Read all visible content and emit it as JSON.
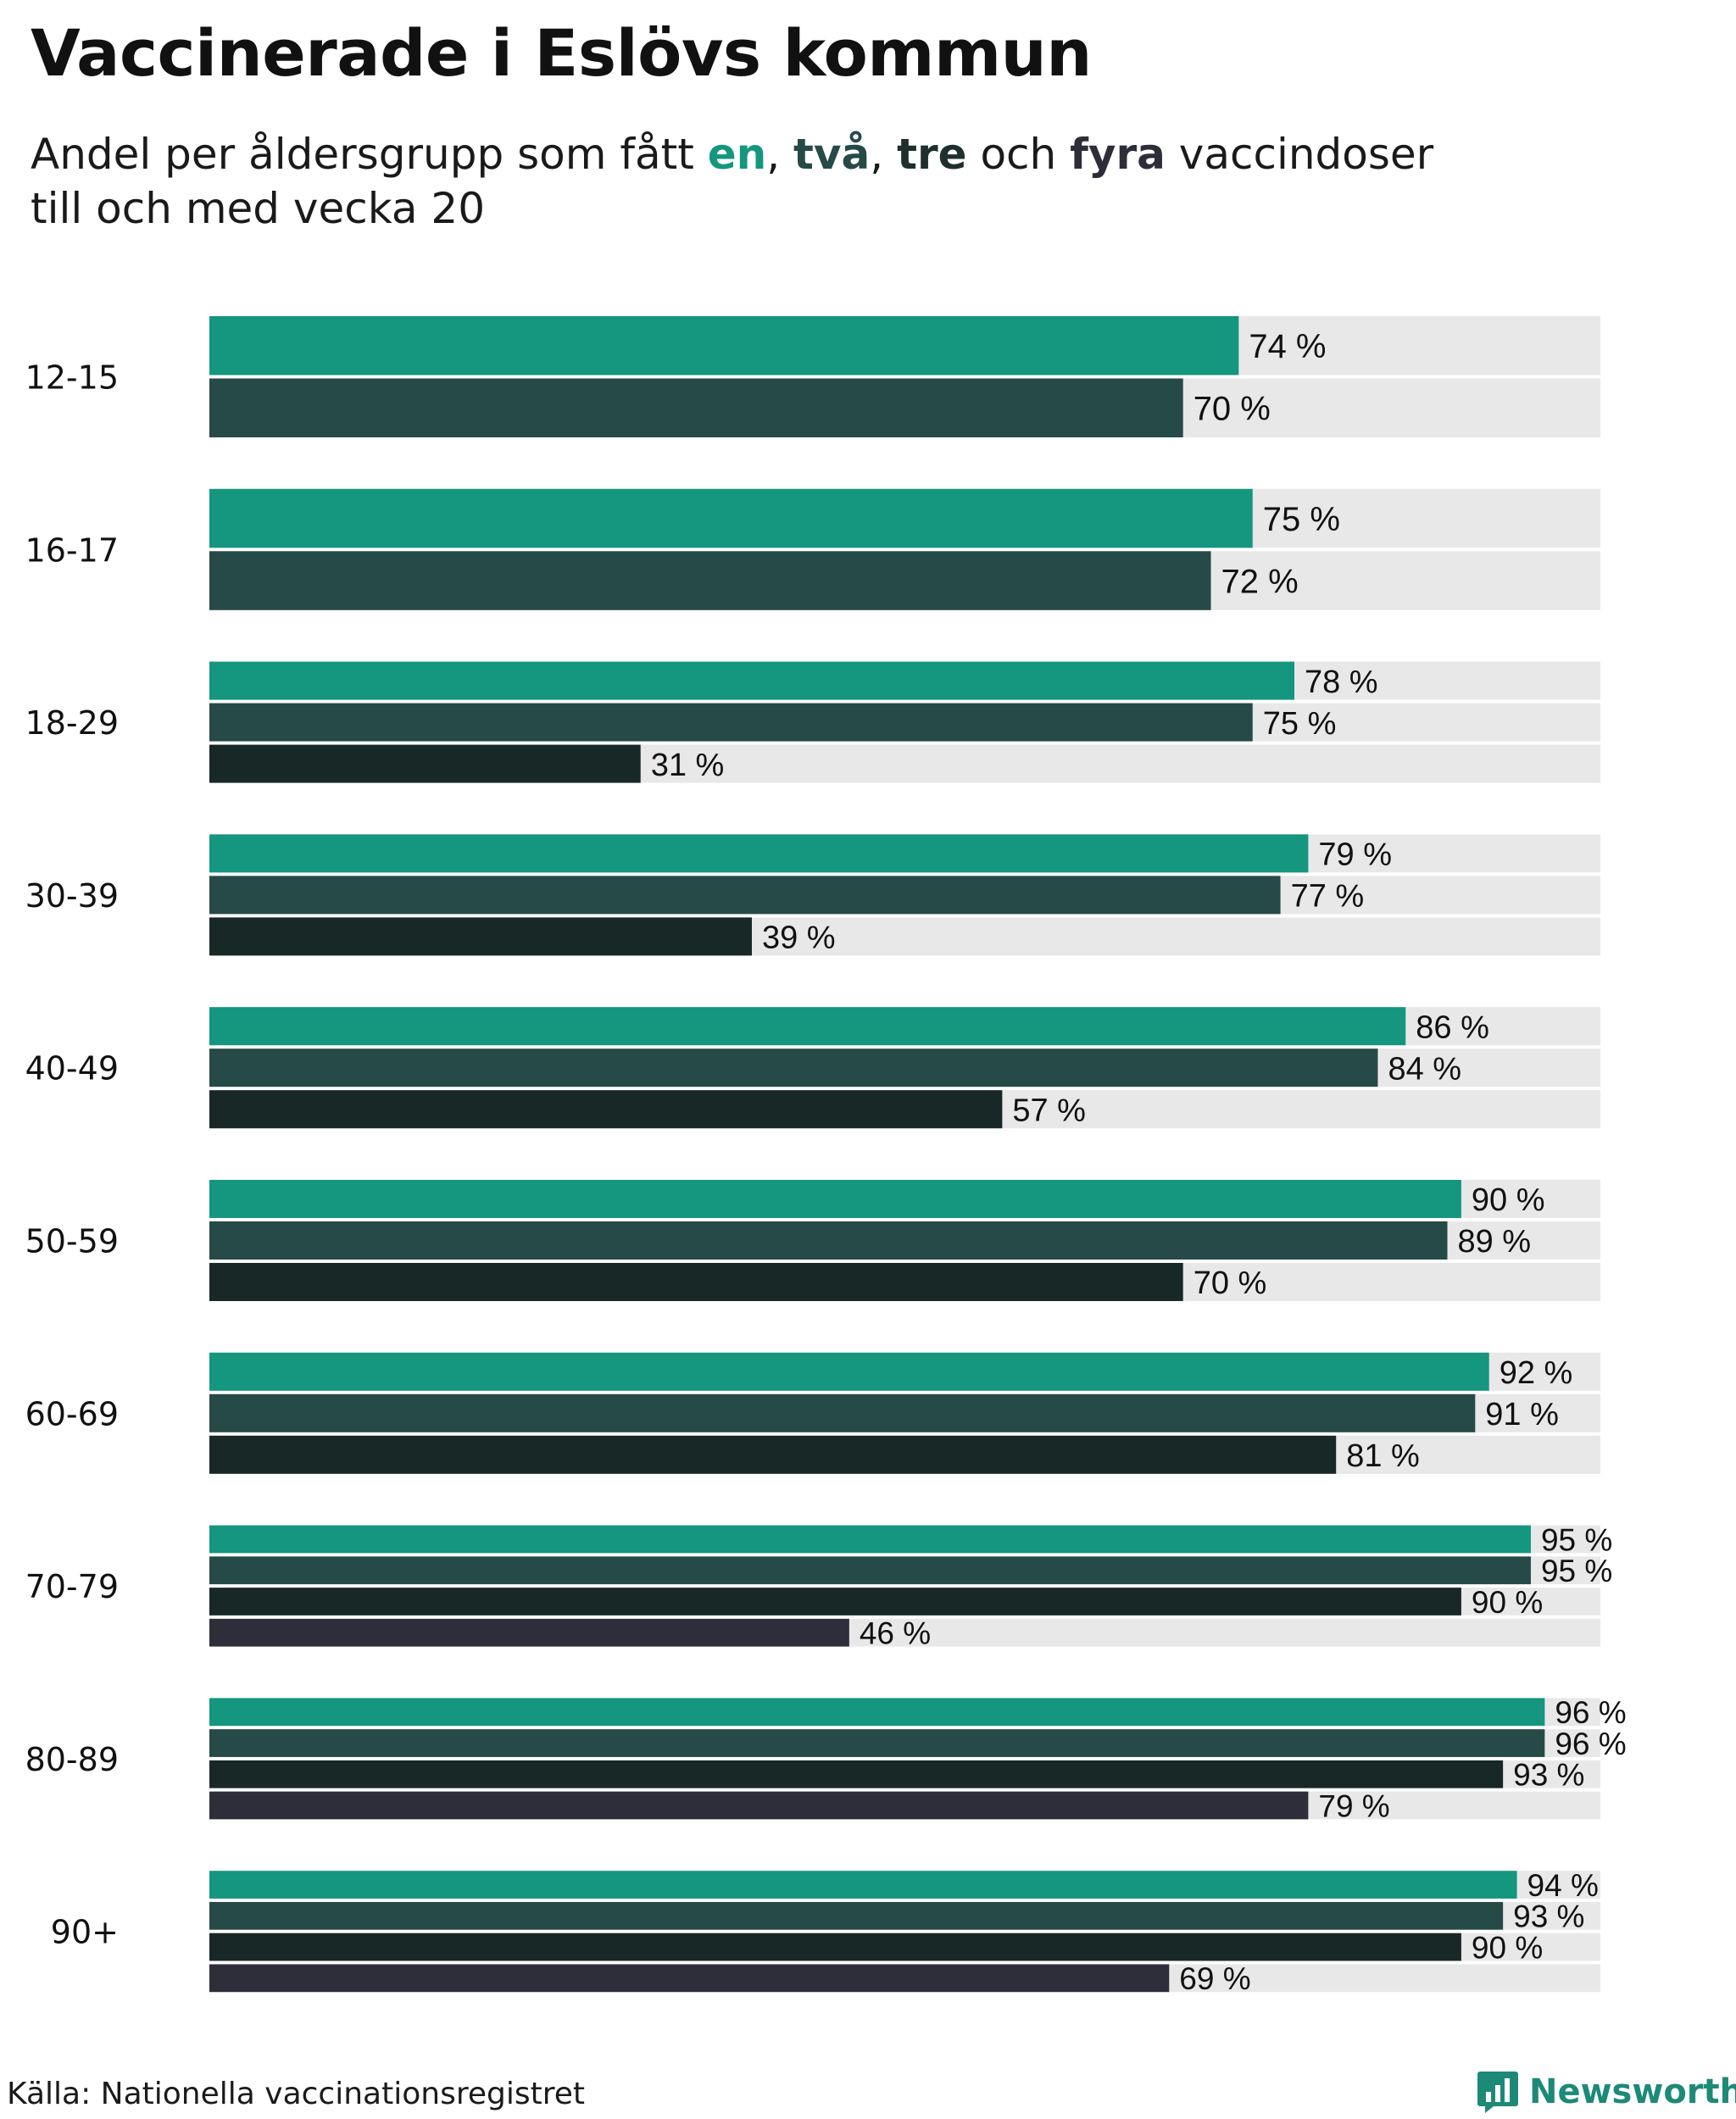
{
  "title": "Vaccinerade i Eslövs kommun",
  "subtitle": {
    "part1": "Andel per åldersgrupp som fått ",
    "dose1": "en",
    "sep1": ", ",
    "dose2": "två",
    "sep2": ", ",
    "dose3": "tre",
    "part2": " och ",
    "dose4": "fyra",
    "part3": " vaccindoser",
    "line2": "till och med vecka 20"
  },
  "source": "Källa: Nationella vaccinationsregistret",
  "brand": {
    "name": "Newsworthy",
    "icon": "newsworthy-logo-icon"
  },
  "colors": {
    "dose1": "#14967f",
    "dose2": "#264a47",
    "dose3": "#182826",
    "dose4": "#2e2d3a",
    "track": "#e8e8e8",
    "brand": "#1d8a78"
  },
  "chart_data": {
    "type": "bar",
    "orientation": "horizontal",
    "value_suffix": " %",
    "xlim": [
      0,
      100
    ],
    "grid": false,
    "legend": "none (dose colors explained in subtitle)",
    "series_names": [
      "en",
      "två",
      "tre",
      "fyra"
    ],
    "categories": [
      "12-15",
      "16-17",
      "18-29",
      "30-39",
      "40-49",
      "50-59",
      "60-69",
      "70-79",
      "80-89",
      "90+"
    ],
    "groups": [
      {
        "label": "12-15",
        "values": [
          74,
          70
        ]
      },
      {
        "label": "16-17",
        "values": [
          75,
          72
        ]
      },
      {
        "label": "18-29",
        "values": [
          78,
          75,
          31
        ]
      },
      {
        "label": "30-39",
        "values": [
          79,
          77,
          39
        ]
      },
      {
        "label": "40-49",
        "values": [
          86,
          84,
          57
        ]
      },
      {
        "label": "50-59",
        "values": [
          90,
          89,
          70
        ]
      },
      {
        "label": "60-69",
        "values": [
          92,
          91,
          81
        ]
      },
      {
        "label": "70-79",
        "values": [
          95,
          95,
          90,
          46
        ]
      },
      {
        "label": "80-89",
        "values": [
          96,
          96,
          93,
          79
        ]
      },
      {
        "label": "90+",
        "values": [
          94,
          93,
          90,
          69
        ]
      }
    ]
  }
}
